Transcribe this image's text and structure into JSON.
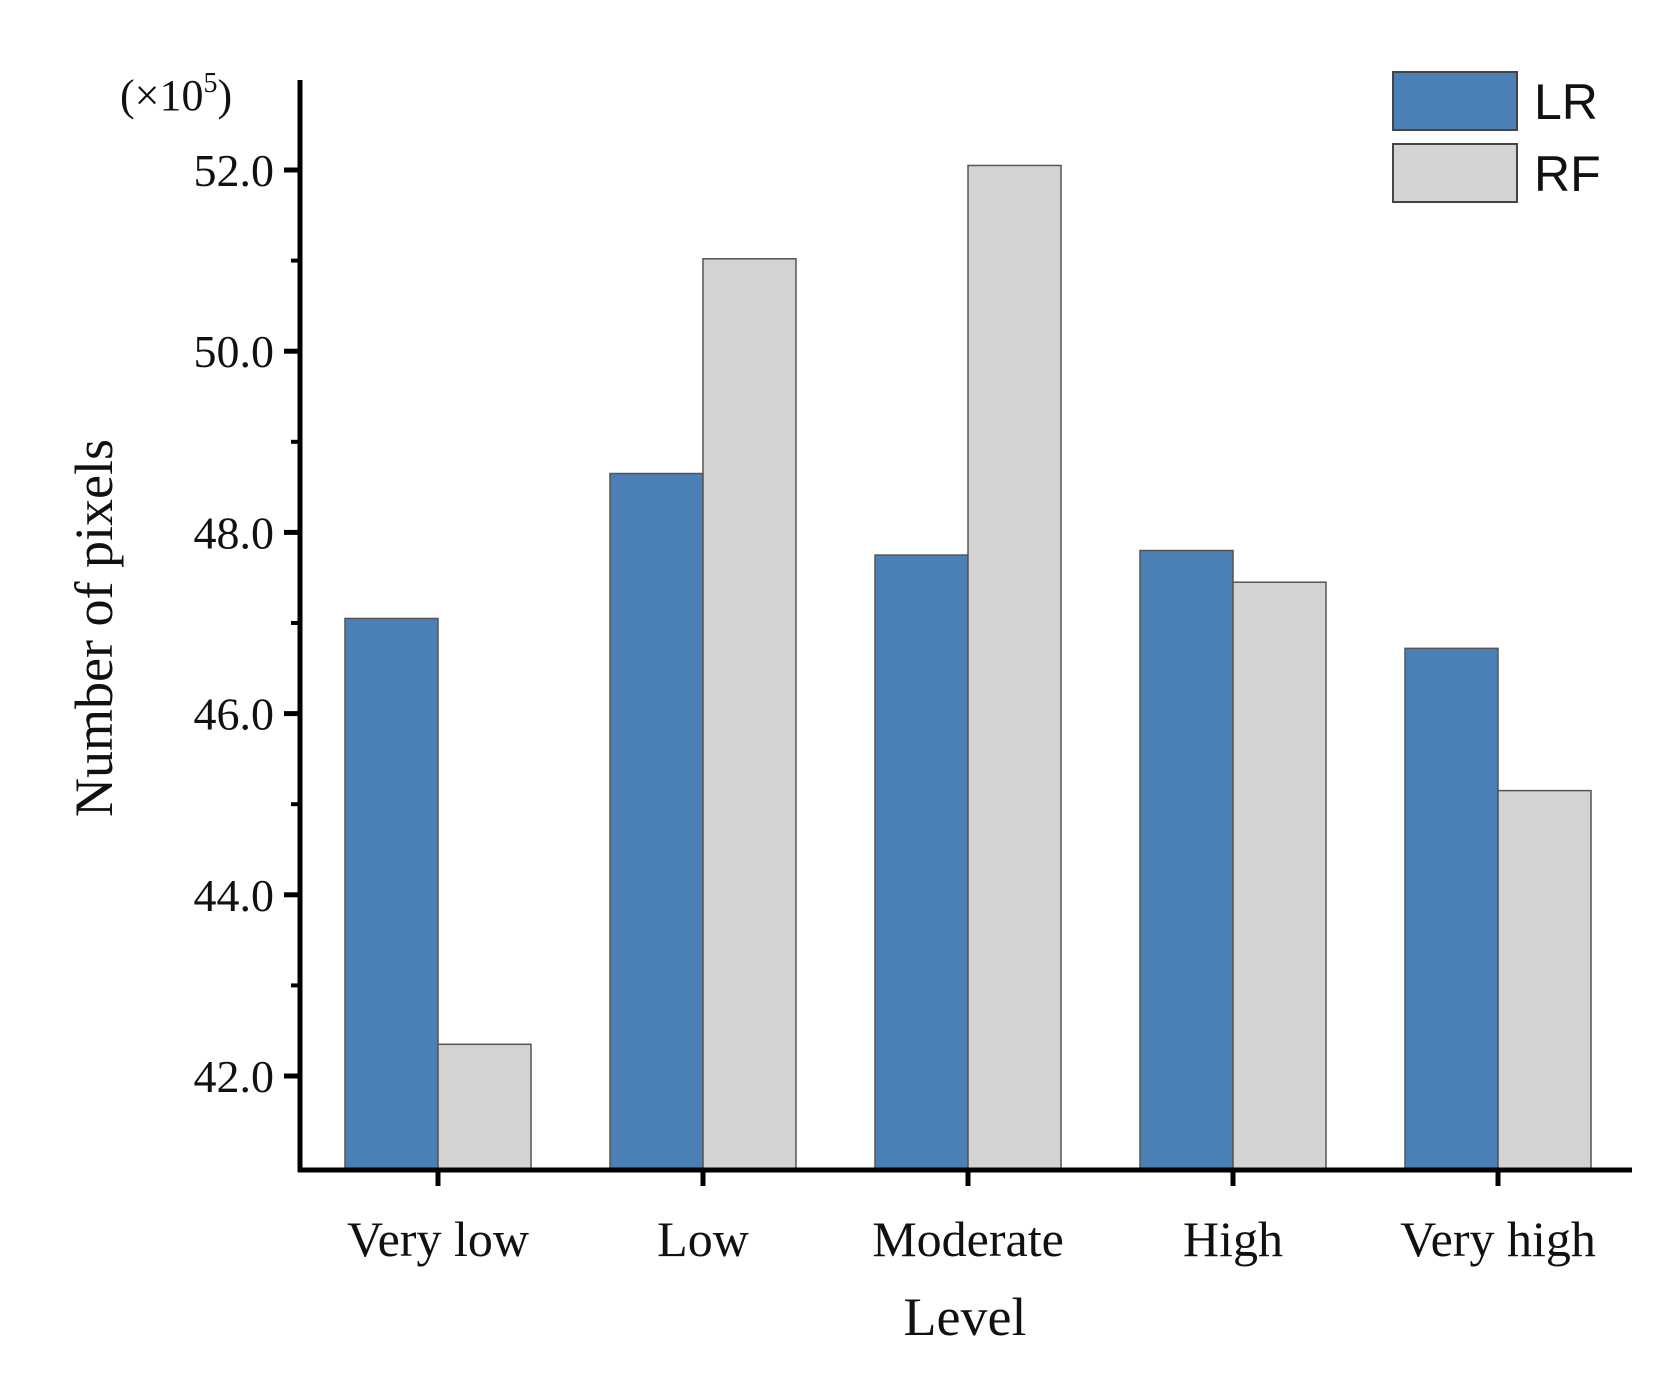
{
  "chart_data": {
    "type": "bar",
    "title": "",
    "xlabel": "Level",
    "ylabel": "Number of pixels",
    "y_multiplier_label": "(×10",
    "y_multiplier_exponent": "5",
    "y_multiplier_close": ")",
    "categories": [
      "Very low",
      "Low",
      "Moderate",
      "High",
      "Very high"
    ],
    "series": [
      {
        "name": "LR",
        "color": "#4a80b5",
        "values": [
          47.05,
          48.65,
          47.75,
          47.8,
          46.72
        ]
      },
      {
        "name": "RF",
        "color": "#d3d3d3",
        "values": [
          42.35,
          51.02,
          52.05,
          47.45,
          45.15
        ]
      }
    ],
    "ylim": [
      41.0,
      53.0
    ],
    "yticks": [
      42.0,
      44.0,
      46.0,
      48.0,
      50.0,
      52.0
    ],
    "ytick_labels": [
      "42.0",
      "44.0",
      "46.0",
      "48.0",
      "50.0",
      "52.0"
    ],
    "legend_position": "top-right",
    "grid": false
  }
}
